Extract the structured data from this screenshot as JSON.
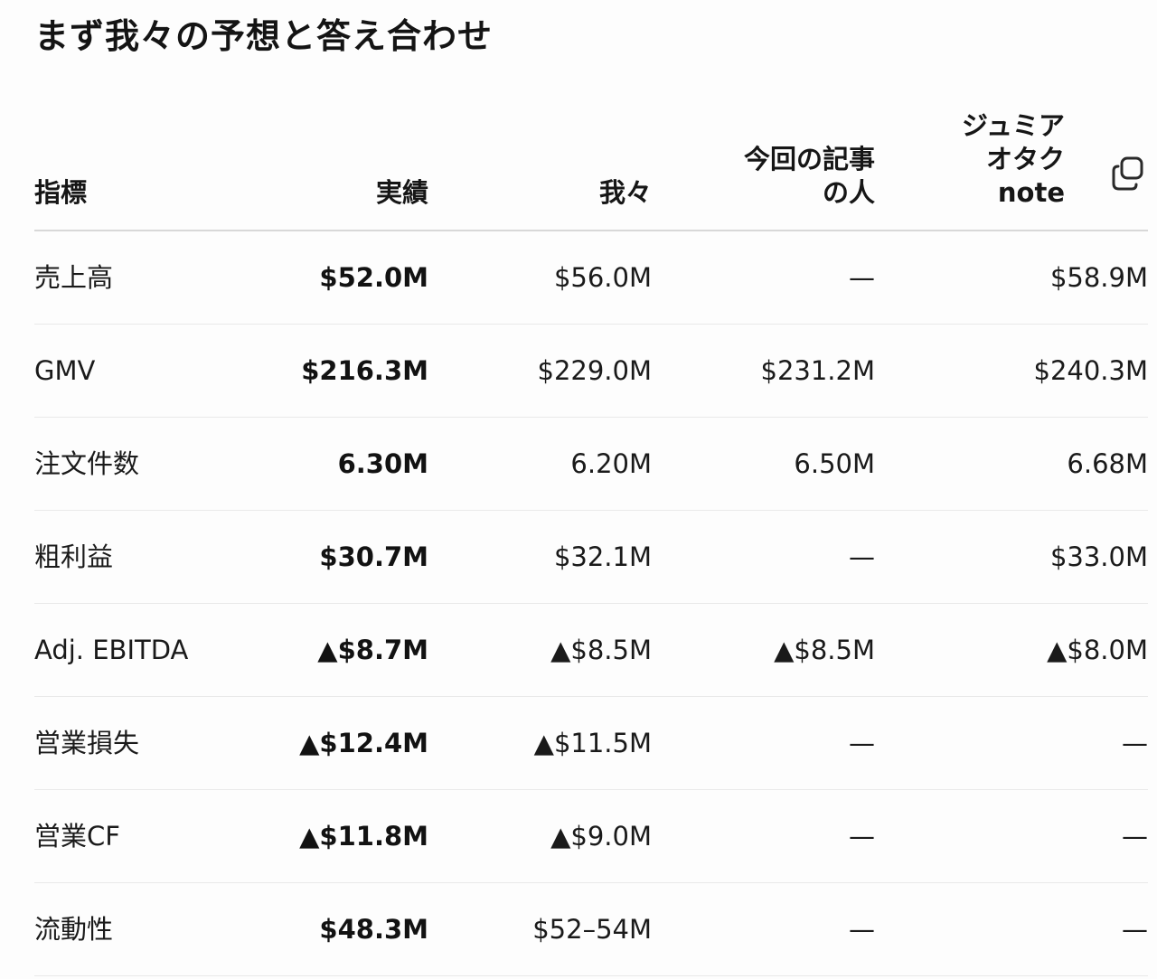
{
  "page": {
    "title": "まず我々の予想と答え合わせ"
  },
  "table": {
    "headers": {
      "metric": "指標",
      "actual": "実績",
      "ours": "我々",
      "article_line1": "今回の記事",
      "article_line2": "の人",
      "otaku_line1": "ジュミア",
      "otaku_line2": "オタク",
      "otaku_line3": "note"
    },
    "copy_icon": "copy-icon",
    "rows": [
      {
        "metric": "売上高",
        "actual": "$52.0M",
        "ours": "$56.0M",
        "article": "—",
        "otaku": "$58.9M"
      },
      {
        "metric": "GMV",
        "actual": "$216.3M",
        "ours": "$229.0M",
        "article": "$231.2M",
        "otaku": "$240.3M"
      },
      {
        "metric": "注文件数",
        "actual": "6.30M",
        "ours": "6.20M",
        "article": "6.50M",
        "otaku": "6.68M"
      },
      {
        "metric": "粗利益",
        "actual": "$30.7M",
        "ours": "$32.1M",
        "article": "—",
        "otaku": "$33.0M"
      },
      {
        "metric": "Adj. EBITDA",
        "actual": "▲$8.7M",
        "ours": "▲$8.5M",
        "article": "▲$8.5M",
        "otaku": "▲$8.0M"
      },
      {
        "metric": "営業損失",
        "actual": "▲$12.4M",
        "ours": "▲$11.5M",
        "article": "—",
        "otaku": "—"
      },
      {
        "metric": "営業CF",
        "actual": "▲$11.8M",
        "ours": "▲$9.0M",
        "article": "—",
        "otaku": "—"
      },
      {
        "metric": "流動性",
        "actual": "$48.3M",
        "ours": "$52–54M",
        "article": "—",
        "otaku": "—"
      }
    ]
  }
}
